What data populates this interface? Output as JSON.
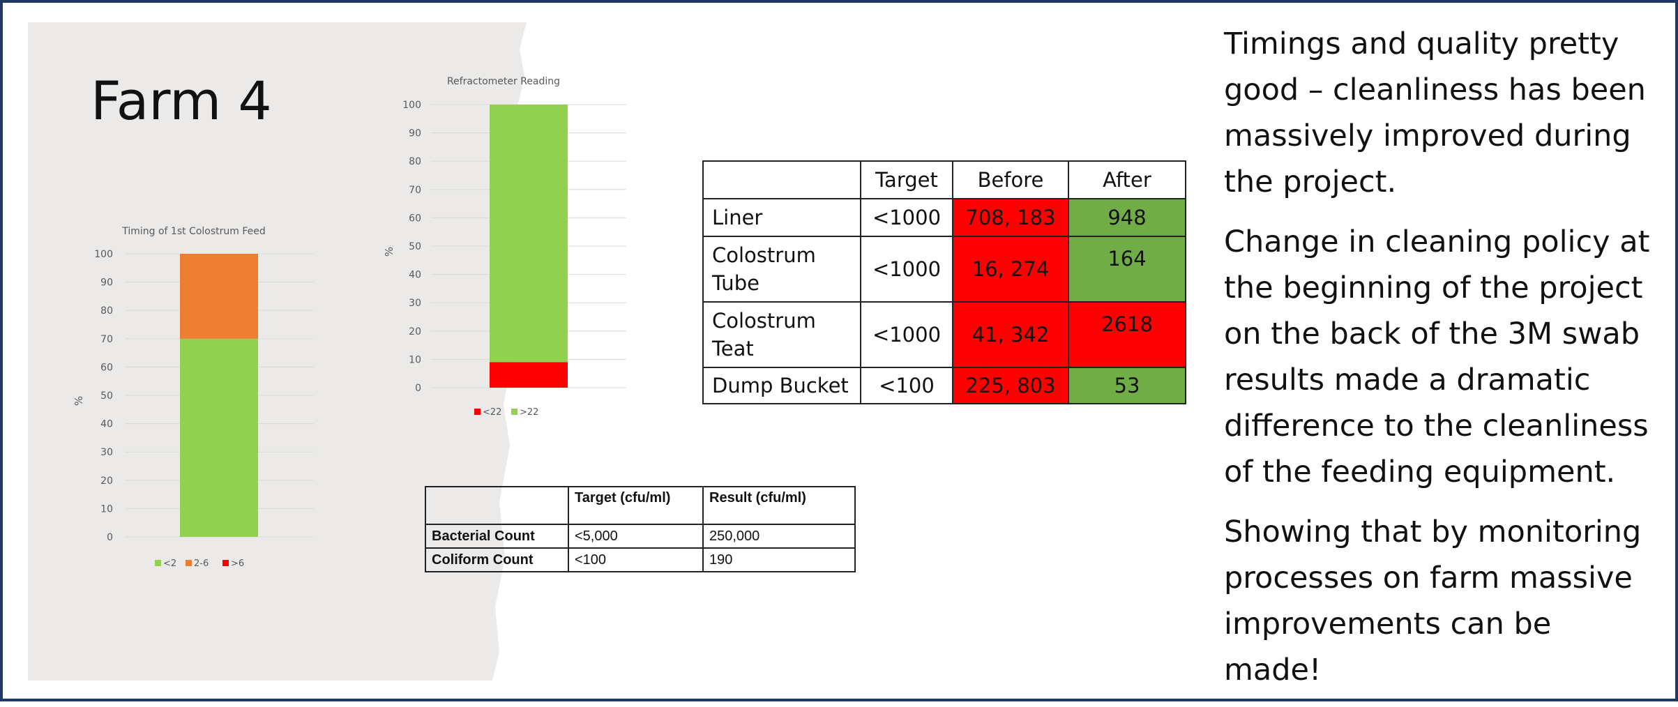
{
  "slide": {
    "title": "Farm 4",
    "colors": {
      "border": "#1f3864",
      "green": "#92d050",
      "orange": "#ed7d31",
      "red": "#ff0000",
      "good_cell": "#70ad47",
      "bad_cell": "#ff0000"
    }
  },
  "chart_data": [
    {
      "type": "bar",
      "stacked": true,
      "title": "Timing of 1st Colostrum Feed",
      "xlabel": "",
      "ylabel": "%",
      "ylim": [
        0,
        100
      ],
      "yticks": [
        "0",
        "10",
        "20",
        "30",
        "40",
        "50",
        "60",
        "70",
        "80",
        "90",
        "100"
      ],
      "grid": true,
      "legend": "bottom",
      "categories": [
        ""
      ],
      "series": [
        {
          "name": "<2",
          "values": [
            70
          ],
          "color": "#92d050"
        },
        {
          "name": "2-6",
          "values": [
            30
          ],
          "color": "#ed7d31"
        },
        {
          "name": ">6",
          "values": [
            0
          ],
          "color": "#ff0000"
        }
      ]
    },
    {
      "type": "bar",
      "stacked": true,
      "title": "Refractometer Reading",
      "xlabel": "",
      "ylabel": "%",
      "ylim": [
        0,
        100
      ],
      "yticks": [
        "0",
        "10",
        "20",
        "30",
        "40",
        "50",
        "60",
        "70",
        "80",
        "90",
        "100"
      ],
      "grid": true,
      "legend": "bottom",
      "categories": [
        ""
      ],
      "series": [
        {
          "name": "<22",
          "values": [
            9
          ],
          "color": "#ff0000"
        },
        {
          "name": ">22",
          "values": [
            91
          ],
          "color": "#92d050"
        }
      ]
    }
  ],
  "swab_table": {
    "headers": [
      "",
      "Target",
      "Before",
      "After"
    ],
    "rows": [
      {
        "name": "Liner",
        "target": "<1000",
        "before": "708, 183",
        "after": "948",
        "before_status": "bad",
        "after_status": "good"
      },
      {
        "name": "Colostrum Tube",
        "target": "<1000",
        "before": "16, 274",
        "after": "164",
        "before_status": "bad",
        "after_status": "good"
      },
      {
        "name": "Colostrum Teat",
        "target": "<1000",
        "before": "41, 342",
        "after": "2618",
        "before_status": "bad",
        "after_status": "bad"
      },
      {
        "name": "Dump Bucket",
        "target": "<100",
        "before": "225, 803",
        "after": "53",
        "before_status": "bad",
        "after_status": "good"
      }
    ]
  },
  "count_table": {
    "headers": [
      "",
      "Target (cfu/ml)",
      "Result (cfu/ml)"
    ],
    "rows": [
      {
        "name": "Bacterial Count",
        "target": "<5,000",
        "result": "250,000"
      },
      {
        "name": "Coliform Count",
        "target": "<100",
        "result": "190"
      }
    ]
  },
  "notes": {
    "p1": "Timings and quality pretty good – cleanliness has been massively improved during the project.",
    "p2": "Change in cleaning policy at the beginning of the project on the back of the 3M swab results made a dramatic difference to the cleanliness of the feeding equipment.",
    "p3": "Showing that by monitoring processes on farm massive improvements can be made!"
  }
}
